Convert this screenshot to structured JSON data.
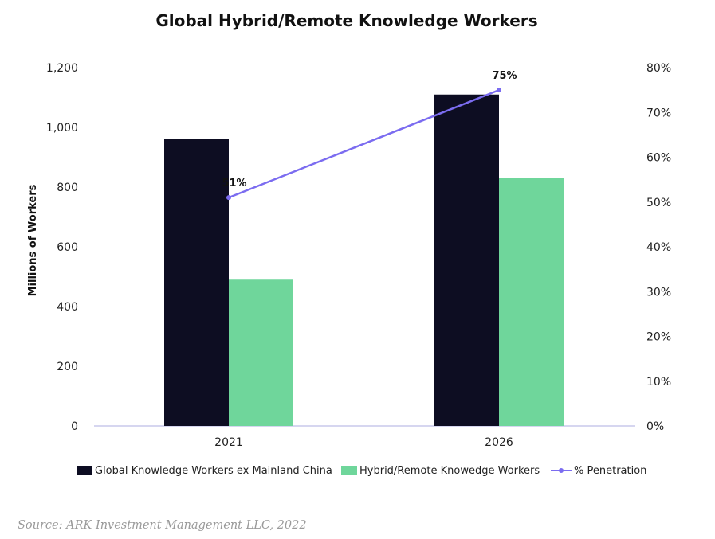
{
  "chart_data": {
    "type": "bar",
    "title": "Global Hybrid/Remote Knowledge Workers",
    "ylabel": "Millions of Workers",
    "y2label": "",
    "categories": [
      "2021",
      "2026"
    ],
    "series": [
      {
        "name": "Global Knowledge Workers ex Mainland China",
        "type": "bar",
        "axis": "left",
        "values": [
          960,
          1110
        ]
      },
      {
        "name": "Hybrid/Remote Knowedge Workers",
        "type": "bar",
        "axis": "left",
        "values": [
          490,
          830
        ]
      },
      {
        "name": "% Penetration",
        "type": "line",
        "axis": "right",
        "values": [
          51,
          75
        ],
        "labels": [
          "51%",
          "75%"
        ]
      }
    ],
    "ylim": [
      0,
      1200
    ],
    "y2lim": [
      0,
      80
    ],
    "yticks": [
      "0",
      "200",
      "400",
      "600",
      "800",
      "1,000",
      "1,200"
    ],
    "y2ticks": [
      "0%",
      "10%",
      "20%",
      "30%",
      "40%",
      "50%",
      "60%",
      "70%",
      "80%"
    ],
    "grid": false,
    "legend_position": "bottom",
    "colors": [
      "#0d0d22",
      "#6fd69b",
      "#7b6cf0"
    ]
  },
  "source": "Source: ARK Investment Management LLC, 2022"
}
